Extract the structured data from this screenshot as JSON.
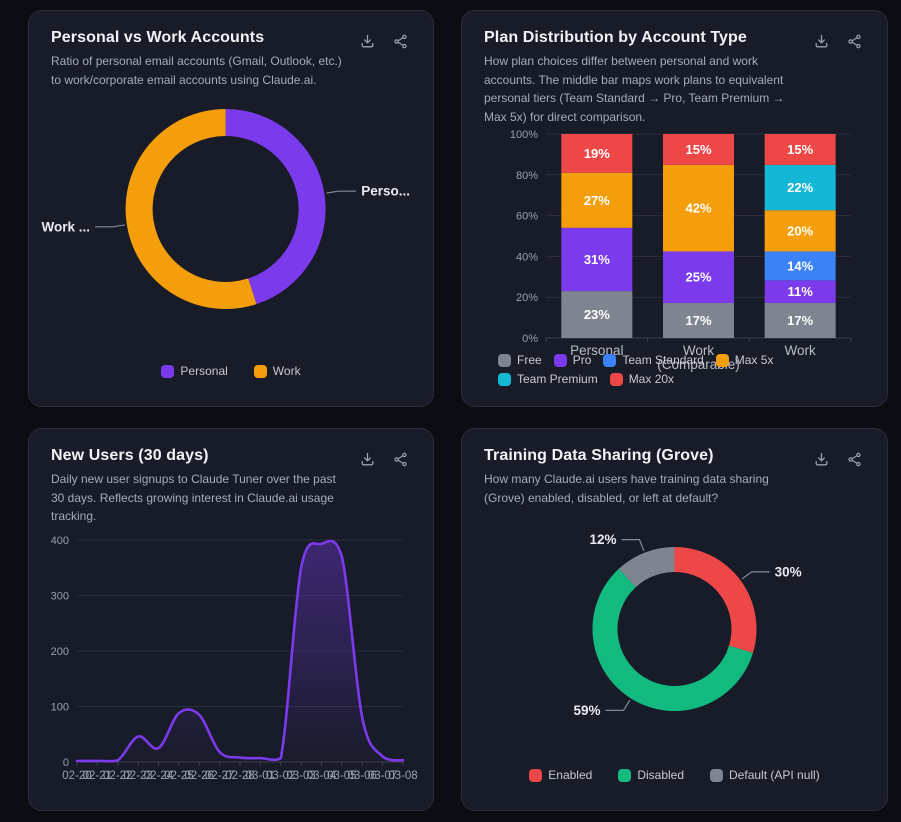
{
  "page": {
    "background": "#0c0d12",
    "card_background": "#181b28"
  },
  "cards": [
    {
      "title": "Personal vs Work Accounts",
      "description": "Ratio of personal email accounts (Gmail, Outlook, etc.) to work/corporate email accounts using Claude.ai."
    },
    {
      "title": "Plan Distribution by Account Type",
      "description": "How plan choices differ between personal and work accounts. The middle bar maps work plans to equivalent personal tiers (Team Standard → Pro, Team Premium → Max 5x) for direct comparison."
    },
    {
      "title": "New Users (30 days)",
      "description": "Daily new user signups to Claude Tuner over the past 30 days. Reflects growing interest in Claude.ai usage tracking."
    },
    {
      "title": "Training Data Sharing (Grove)",
      "description": "How many Claude.ai users have training data sharing (Grove) enabled, disabled, or left at default?"
    }
  ],
  "card_actions": {
    "download_icon": "download-icon",
    "share_icon": "share-icon"
  },
  "chart_data": [
    {
      "type": "pie",
      "donut": true,
      "title": "Personal vs Work Accounts",
      "segments": [
        {
          "label": "Personal",
          "value": 45,
          "color": "#7c3aed",
          "callout_label": "Perso..."
        },
        {
          "label": "Work",
          "value": 55,
          "color": "#f59e0b",
          "callout_label": "Work ..."
        }
      ],
      "legend_position": "bottom"
    },
    {
      "type": "bar",
      "stacked": true,
      "percent": true,
      "title": "Plan Distribution by Account Type",
      "categories": [
        "Personal",
        "Work (Comparable)",
        "Work"
      ],
      "series": [
        {
          "name": "Free",
          "color": "#7e8591",
          "values": [
            23,
            17,
            17
          ]
        },
        {
          "name": "Pro",
          "color": "#7c3aed",
          "values": [
            31,
            25,
            11
          ]
        },
        {
          "name": "Team Standard",
          "color": "#3b82f6",
          "values": [
            0,
            0,
            14
          ]
        },
        {
          "name": "Max 5x",
          "color": "#f59e0b",
          "values": [
            27,
            42,
            20
          ]
        },
        {
          "name": "Team Premium",
          "color": "#14b8d4",
          "values": [
            0,
            0,
            22
          ]
        },
        {
          "name": "Max 20x",
          "color": "#ee4747",
          "values": [
            19,
            15,
            15
          ]
        }
      ],
      "value_suffix": "%",
      "y_tick_labels": [
        "0%",
        "20%",
        "40%",
        "60%",
        "80%",
        "100%"
      ],
      "ylim": [
        0,
        100
      ],
      "grid": true,
      "legend_position": "bottom"
    },
    {
      "type": "area",
      "title": "New Users (30 days)",
      "x": [
        "02-20",
        "02-21",
        "02-22",
        "02-23",
        "02-24",
        "02-25",
        "02-26",
        "02-27",
        "02-28",
        "03-01",
        "03-02",
        "03-03",
        "03-04",
        "03-05",
        "03-06",
        "03-07",
        "03-08"
      ],
      "values": [
        2,
        2,
        3,
        46,
        25,
        88,
        85,
        18,
        8,
        7,
        7,
        350,
        393,
        370,
        80,
        10,
        3
      ],
      "color": "#7c3aed",
      "yticks": [
        0,
        100,
        200,
        300,
        400
      ],
      "ylim": [
        0,
        400
      ],
      "grid": true,
      "legend_position": "none"
    },
    {
      "type": "pie",
      "donut": true,
      "title": "Training Data Sharing (Grove)",
      "segments": [
        {
          "label": "Enabled",
          "value": 30,
          "color": "#ee4747",
          "callout_label": "30%"
        },
        {
          "label": "Disabled",
          "value": 59,
          "color": "#13ba7f",
          "callout_label": "59%"
        },
        {
          "label": "Default (API null)",
          "value": 12,
          "color": "#7e8591",
          "callout_label": "12%"
        }
      ],
      "legend_position": "bottom"
    }
  ]
}
